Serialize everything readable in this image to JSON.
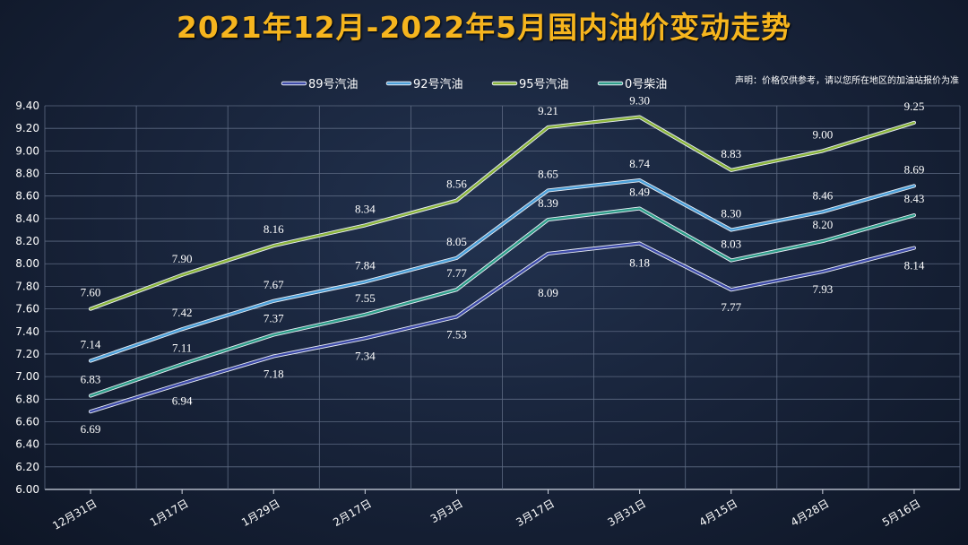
{
  "title": "2021年12月-2022年5月国内油价变动走势",
  "note": "声明：价格仅供参考，请以您所在地区的加油站报价为准",
  "chart_data": {
    "type": "line",
    "title": "2021年12月-2022年5月国内油价变动走势",
    "categories": [
      "12月31日",
      "1月17日",
      "1月29日",
      "2月17日",
      "3月3日",
      "3月17日",
      "3月31日",
      "4月15日",
      "4月28日",
      "5月16日"
    ],
    "ylim": [
      6.0,
      9.4
    ],
    "ytick_step": 0.2,
    "yticks": [
      "6.00",
      "6.20",
      "6.40",
      "6.60",
      "6.80",
      "7.00",
      "7.20",
      "7.40",
      "7.60",
      "7.80",
      "8.00",
      "8.20",
      "8.40",
      "8.60",
      "8.80",
      "9.00",
      "9.20",
      "9.40"
    ],
    "grid": true,
    "legend_position": "top",
    "series": [
      {
        "name": "89号汽油",
        "color": "#3d4aa8",
        "values": [
          6.69,
          6.94,
          7.18,
          7.34,
          7.53,
          8.09,
          8.18,
          7.77,
          7.93,
          8.14
        ]
      },
      {
        "name": "92号汽油",
        "color": "#4b9fd8",
        "values": [
          7.14,
          7.42,
          7.67,
          7.84,
          8.05,
          8.65,
          8.74,
          8.3,
          8.46,
          8.69
        ]
      },
      {
        "name": "95号汽油",
        "color": "#8ab43c",
        "values": [
          7.6,
          7.9,
          8.16,
          8.34,
          8.56,
          9.21,
          9.3,
          8.83,
          9.0,
          9.25
        ]
      },
      {
        "name": "0号柴油",
        "color": "#2e9e8a",
        "values": [
          6.83,
          7.11,
          7.37,
          7.55,
          7.77,
          8.39,
          8.49,
          8.03,
          8.2,
          8.43
        ]
      }
    ],
    "labels": [
      [
        "6.69",
        "6.94",
        "7.18",
        "7.34",
        "7.53",
        "8.09",
        "8.18",
        "7.77",
        "7.93",
        "8.14"
      ],
      [
        "7.14",
        "7.42",
        "7.67",
        "7.84",
        "8.05",
        "8.65",
        "8.74",
        "8.30",
        "8.46",
        "8.69"
      ],
      [
        "7.60",
        "7.90",
        "8.16",
        "8.34",
        "8.56",
        "9.21",
        "9.30",
        "8.83",
        "9.00",
        "9.25"
      ],
      [
        "6.83",
        "7.11",
        "7.37",
        "7.55",
        "7.77",
        "8.39",
        "8.49",
        "8.03",
        "8.20",
        "8.43"
      ]
    ]
  }
}
